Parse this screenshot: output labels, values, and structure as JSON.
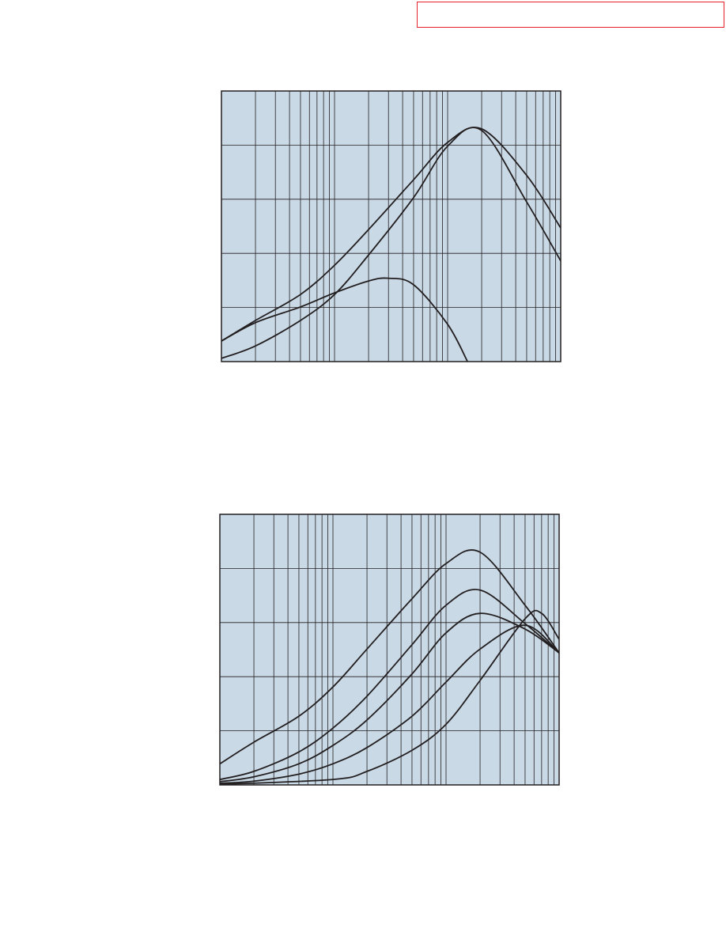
{
  "chart_data": [
    {
      "type": "line",
      "log_x": true,
      "grid": true,
      "background": "#c9d9e6",
      "line_color": "#231f20",
      "xlim": [
        1,
        1000
      ],
      "ylim": [
        0,
        5
      ],
      "xticks": [
        1,
        2,
        3,
        4,
        5,
        6,
        7,
        8,
        9,
        10,
        20,
        30,
        40,
        50,
        60,
        70,
        80,
        90,
        100,
        200,
        300,
        400,
        500,
        600,
        700,
        800,
        900,
        1000
      ],
      "yticks": [
        0,
        1,
        2,
        3,
        4,
        5
      ],
      "series": [
        {
          "x": [
            1,
            2,
            5,
            10,
            20,
            50,
            100,
            200,
            500,
            1000
          ],
          "values": [
            0.38,
            0.76,
            1.24,
            1.78,
            2.44,
            3.36,
            4.05,
            4.3,
            3.44,
            2.47
          ]
        },
        {
          "x": [
            1,
            2,
            5,
            10,
            20,
            50,
            100,
            200,
            500,
            1000
          ],
          "values": [
            0.06,
            0.29,
            0.76,
            1.24,
            1.97,
            3.03,
            3.98,
            4.27,
            2.95,
            1.86
          ]
        },
        {
          "x": [
            1,
            2,
            5,
            10,
            20,
            30,
            50,
            100,
            150
          ],
          "values": [
            0.38,
            0.72,
            1.01,
            1.27,
            1.49,
            1.54,
            1.42,
            0.69,
            0
          ]
        }
      ]
    },
    {
      "type": "line",
      "log_x": true,
      "grid": true,
      "background": "#c9d9e6",
      "line_color": "#231f20",
      "xlim": [
        1,
        1000
      ],
      "ylim": [
        0,
        5
      ],
      "xticks": [
        1,
        2,
        3,
        4,
        5,
        6,
        7,
        8,
        9,
        10,
        20,
        30,
        40,
        50,
        60,
        70,
        80,
        90,
        100,
        200,
        300,
        400,
        500,
        600,
        700,
        800,
        900,
        1000
      ],
      "yticks": [
        0,
        1,
        2,
        3,
        4,
        5
      ],
      "series": [
        {
          "x": [
            1,
            2,
            5,
            10,
            20,
            50,
            100,
            200,
            500,
            1000
          ],
          "values": [
            0.39,
            0.79,
            1.27,
            1.81,
            2.51,
            3.44,
            4.09,
            4.3,
            3.32,
            2.44
          ]
        },
        {
          "x": [
            1,
            2,
            5,
            10,
            20,
            50,
            100,
            200,
            500,
            1000
          ],
          "values": [
            0.1,
            0.25,
            0.61,
            1.05,
            1.64,
            2.59,
            3.32,
            3.6,
            2.98,
            2.44
          ]
        },
        {
          "x": [
            1,
            2,
            5,
            10,
            20,
            50,
            100,
            200,
            500,
            1000
          ],
          "values": [
            0.06,
            0.15,
            0.39,
            0.73,
            1.2,
            2.05,
            2.81,
            3.17,
            2.88,
            2.44
          ]
        },
        {
          "x": [
            1,
            2,
            5,
            10,
            20,
            50,
            100,
            200,
            500,
            1000
          ],
          "values": [
            0.03,
            0.07,
            0.2,
            0.39,
            0.69,
            1.27,
            1.9,
            2.51,
            2.95,
            2.44
          ]
        },
        {
          "x": [
            1,
            10,
            20,
            50,
            100,
            200,
            500,
            700,
            1000
          ],
          "values": [
            0.01,
            0.1,
            0.25,
            0.64,
            1.12,
            1.93,
            3.07,
            3.17,
            2.69
          ]
        }
      ]
    }
  ]
}
